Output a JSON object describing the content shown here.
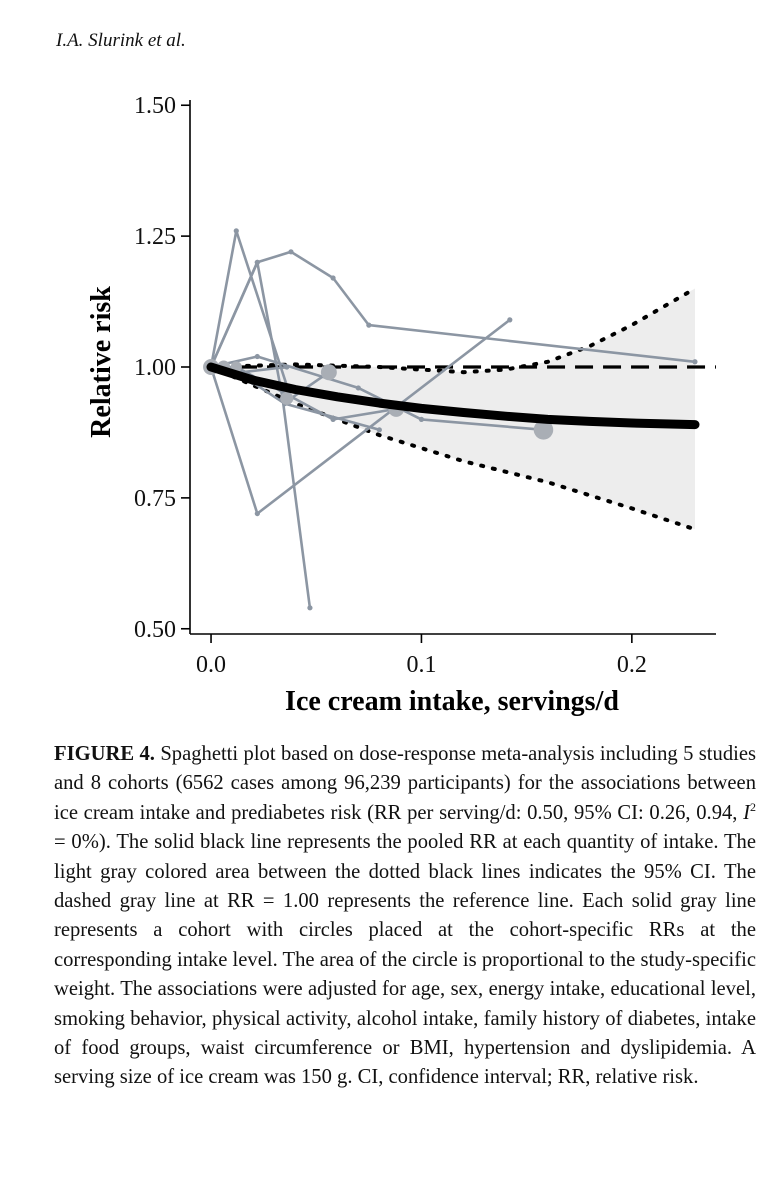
{
  "running_head": "I.A. Slurink et al.",
  "caption": {
    "label": "FIGURE 4.",
    "text_1": " Spaghetti plot based on dose-response meta-analysis including 5 studies and 8 cohorts (6562 cases among 96,239 participants) for the associations between ice cream intake and prediabetes risk (RR per serving/d: 0.50, 95% CI: 0.26, 0.94, ",
    "i2_symbol": "I",
    "i2_sup": "2",
    "text_2": " = 0%). The solid black line represents the pooled RR at each quantity of intake. The light gray colored area between the dotted black lines indicates the 95% CI. The dashed gray line at RR = 1.00 represents the reference line. Each solid gray line represents a cohort with circles placed at the cohort-specific RRs at the corresponding intake level. The area of the circle is proportional to the study-specific weight. The associations were adjusted for age, sex, energy intake, educational level, smoking behavior, physical activity, alcohol intake, family history of diabetes, intake of food groups, waist circumference or BMI, hypertension and dyslipidemia. A serving size of ice cream was 150 g. CI, confidence interval; RR, relative risk."
  },
  "chart_data": {
    "type": "line",
    "xlabel": "Ice cream intake, servings/d",
    "ylabel": "Relative risk",
    "xlim": [
      -0.01,
      0.24
    ],
    "ylim": [
      0.49,
      1.51
    ],
    "xticks": [
      0.0,
      0.1,
      0.2
    ],
    "xtick_labels": [
      "0.0",
      "0.1",
      "0.2"
    ],
    "yticks": [
      0.5,
      0.75,
      1.0,
      1.25,
      1.5
    ],
    "ytick_labels": [
      "0.50",
      "0.75",
      "1.00",
      "1.25",
      "1.50"
    ],
    "reference_line": 1.0,
    "pooled_rr": {
      "x": [
        0,
        0.02,
        0.04,
        0.06,
        0.08,
        0.1,
        0.12,
        0.14,
        0.16,
        0.18,
        0.2,
        0.23
      ],
      "y": [
        1.0,
        0.975,
        0.957,
        0.943,
        0.931,
        0.921,
        0.913,
        0.906,
        0.9,
        0.896,
        0.893,
        0.89
      ]
    },
    "ci_upper": {
      "x": [
        0,
        0.04,
        0.08,
        0.1,
        0.12,
        0.14,
        0.16,
        0.18,
        0.2,
        0.23
      ],
      "y": [
        1.0,
        1.005,
        1.0,
        0.995,
        0.99,
        0.995,
        1.01,
        1.04,
        1.08,
        1.15
      ]
    },
    "ci_lower": {
      "x": [
        0,
        0.04,
        0.08,
        0.12,
        0.16,
        0.2,
        0.23
      ],
      "y": [
        1.0,
        0.93,
        0.87,
        0.82,
        0.78,
        0.73,
        0.69
      ]
    },
    "cohorts": [
      {
        "x": [
          0,
          0.012,
          0.038,
          0.056
        ],
        "y": [
          1.0,
          1.26,
          0.94,
          0.99
        ]
      },
      {
        "x": [
          0,
          0.022,
          0.038,
          0.058,
          0.075,
          0.23
        ],
        "y": [
          1.0,
          1.2,
          1.22,
          1.17,
          1.08,
          1.01
        ]
      },
      {
        "x": [
          0,
          0.022,
          0.034,
          0.047
        ],
        "y": [
          1.0,
          1.2,
          0.94,
          0.54
        ]
      },
      {
        "x": [
          0,
          0.022,
          0.142
        ],
        "y": [
          1.0,
          0.72,
          1.09
        ]
      },
      {
        "x": [
          0,
          0.012,
          0.058,
          0.088
        ],
        "y": [
          1.0,
          1.0,
          0.9,
          0.92
        ]
      },
      {
        "x": [
          0,
          0.022,
          0.07,
          0.1,
          0.158
        ],
        "y": [
          1.0,
          1.02,
          0.96,
          0.9,
          0.88
        ]
      },
      {
        "x": [
          0,
          0.02,
          0.035,
          0.08
        ],
        "y": [
          1.0,
          0.97,
          0.93,
          0.88
        ]
      },
      {
        "x": [
          0,
          0.015,
          0.036
        ],
        "y": [
          1.0,
          0.99,
          1.0
        ]
      }
    ],
    "study_points": [
      {
        "x": 0.0,
        "y": 1.0,
        "weight": 3
      },
      {
        "x": 0.006,
        "y": 1.0,
        "weight": 2
      },
      {
        "x": 0.012,
        "y": 1.0,
        "weight": 1.5
      },
      {
        "x": 0.036,
        "y": 0.94,
        "weight": 2
      },
      {
        "x": 0.056,
        "y": 0.99,
        "weight": 3
      },
      {
        "x": 0.088,
        "y": 0.92,
        "weight": 3
      },
      {
        "x": 0.158,
        "y": 0.88,
        "weight": 4.5
      }
    ],
    "colors": {
      "pooled": "#000000",
      "cohort": "#8c96a3",
      "point": "#a9aeb5",
      "ci_fill": "#ededed",
      "reference": "#000000"
    }
  }
}
